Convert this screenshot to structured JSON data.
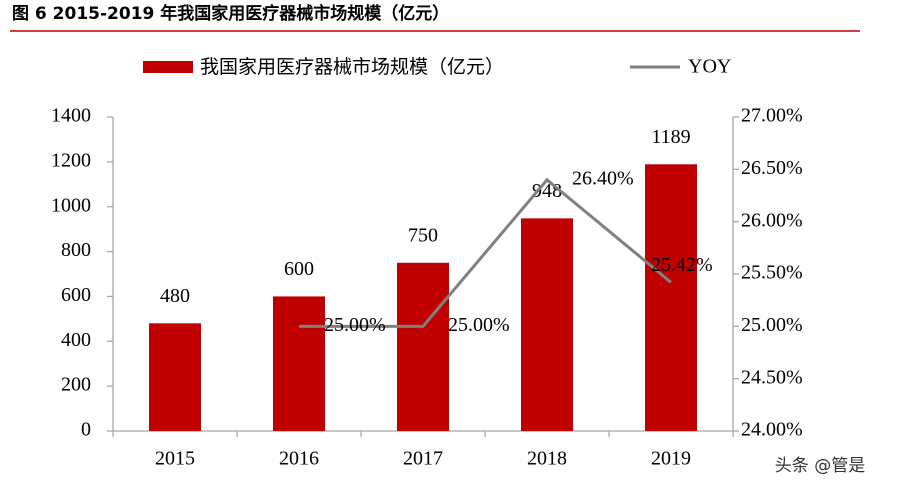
{
  "chart_data": {
    "type": "bar",
    "title": "图 6 2015-2019 年我国家用医疗器械市场规模（亿元）",
    "categories": [
      "2015",
      "2016",
      "2017",
      "2018",
      "2019"
    ],
    "series": [
      {
        "name": "我国家用医疗器械市场规模（亿元）",
        "type": "bar",
        "color": "#c00000",
        "values": [
          480,
          600,
          750,
          948,
          1189
        ]
      },
      {
        "name": "YOY",
        "type": "line",
        "color": "#808080",
        "axis": "y2",
        "values": [
          null,
          25,
          25,
          26.4,
          25.42
        ],
        "value_labels": [
          null,
          "25.00%",
          "25.00%",
          "26.40%",
          "25.42%"
        ]
      }
    ],
    "ylim": [
      0,
      1400
    ],
    "yticks": [
      0,
      200,
      400,
      600,
      800,
      1000,
      1200,
      1400
    ],
    "y2lim": [
      24,
      27
    ],
    "y2ticks": [
      {
        "value": 24,
        "label": "24.00%"
      },
      {
        "value": 24.5,
        "label": "24.50%"
      },
      {
        "value": 25,
        "label": "25.00%"
      },
      {
        "value": 25.5,
        "label": "25.50%"
      },
      {
        "value": 26,
        "label": "26.00%"
      },
      {
        "value": 26.5,
        "label": "26.50%"
      },
      {
        "value": 27,
        "label": "27.00%"
      }
    ],
    "grid": false,
    "watermark": "头条 @管是"
  }
}
